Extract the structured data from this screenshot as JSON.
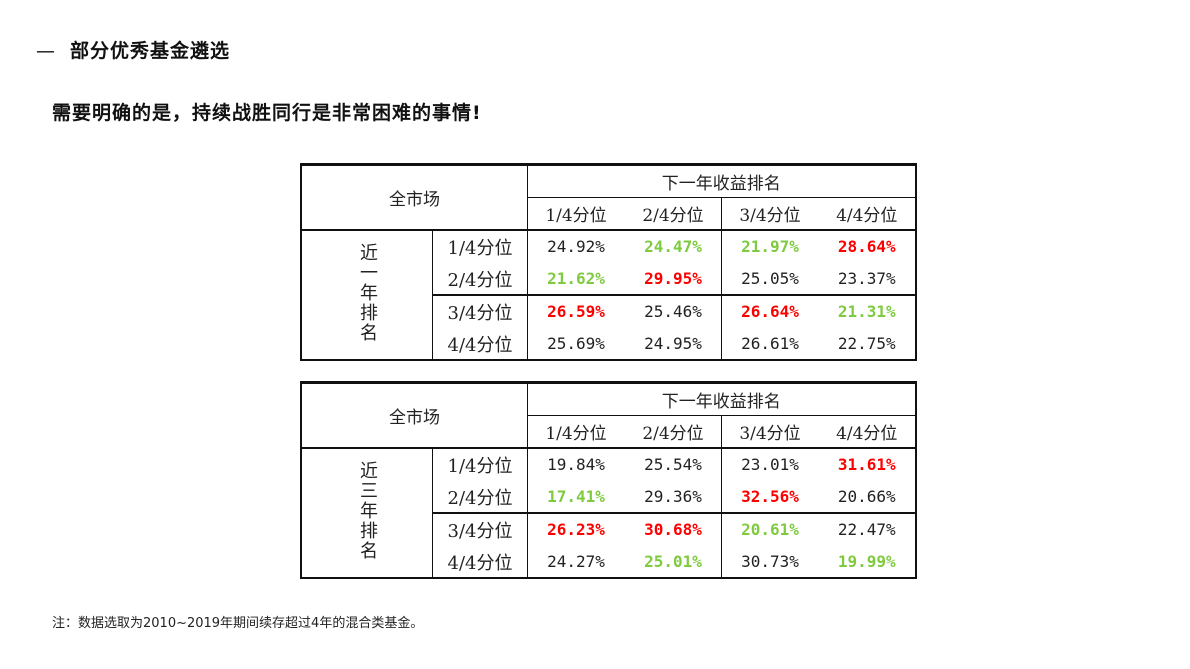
{
  "section": {
    "dash": "—",
    "title": "部分优秀基金遴选"
  },
  "headline": "需要明确的是，持续战胜同行是非常困难的事情!",
  "note": "注：数据选取为2010~2019年期间续存超过4年的混合类基金。",
  "colors": {
    "high": "#ff0000",
    "low": "#7ecb3f",
    "normal": "#222222"
  },
  "tables": [
    {
      "corner": "全市场",
      "col_group": "下一年收益排名",
      "row_group": "近一年排名",
      "cols": [
        "1/4分位",
        "2/4分位",
        "3/4分位",
        "4/4分位"
      ],
      "rows": [
        {
          "label": "1/4分位",
          "cells": [
            {
              "v": "24.92%",
              "s": ""
            },
            {
              "v": "24.47%",
              "s": "green"
            },
            {
              "v": "21.97%",
              "s": "green"
            },
            {
              "v": "28.64%",
              "s": "red"
            }
          ]
        },
        {
          "label": "2/4分位",
          "cells": [
            {
              "v": "21.62%",
              "s": "green"
            },
            {
              "v": "29.95%",
              "s": "red"
            },
            {
              "v": "25.05%",
              "s": ""
            },
            {
              "v": "23.37%",
              "s": ""
            }
          ]
        },
        {
          "label": "3/4分位",
          "cells": [
            {
              "v": "26.59%",
              "s": "red"
            },
            {
              "v": "25.46%",
              "s": ""
            },
            {
              "v": "26.64%",
              "s": "red"
            },
            {
              "v": "21.31%",
              "s": "green"
            }
          ]
        },
        {
          "label": "4/4分位",
          "cells": [
            {
              "v": "25.69%",
              "s": ""
            },
            {
              "v": "24.95%",
              "s": ""
            },
            {
              "v": "26.61%",
              "s": ""
            },
            {
              "v": "22.75%",
              "s": ""
            }
          ]
        }
      ]
    },
    {
      "corner": "全市场",
      "col_group": "下一年收益排名",
      "row_group": "近三年排名",
      "cols": [
        "1/4分位",
        "2/4分位",
        "3/4分位",
        "4/4分位"
      ],
      "rows": [
        {
          "label": "1/4分位",
          "cells": [
            {
              "v": "19.84%",
              "s": ""
            },
            {
              "v": "25.54%",
              "s": ""
            },
            {
              "v": "23.01%",
              "s": ""
            },
            {
              "v": "31.61%",
              "s": "red"
            }
          ]
        },
        {
          "label": "2/4分位",
          "cells": [
            {
              "v": "17.41%",
              "s": "green"
            },
            {
              "v": "29.36%",
              "s": ""
            },
            {
              "v": "32.56%",
              "s": "red"
            },
            {
              "v": "20.66%",
              "s": ""
            }
          ]
        },
        {
          "label": "3/4分位",
          "cells": [
            {
              "v": "26.23%",
              "s": "red"
            },
            {
              "v": "30.68%",
              "s": "red"
            },
            {
              "v": "20.61%",
              "s": "green"
            },
            {
              "v": "22.47%",
              "s": ""
            }
          ]
        },
        {
          "label": "4/4分位",
          "cells": [
            {
              "v": "24.27%",
              "s": ""
            },
            {
              "v": "25.01%",
              "s": "green"
            },
            {
              "v": "30.73%",
              "s": ""
            },
            {
              "v": "19.99%",
              "s": "green"
            }
          ]
        }
      ]
    }
  ]
}
